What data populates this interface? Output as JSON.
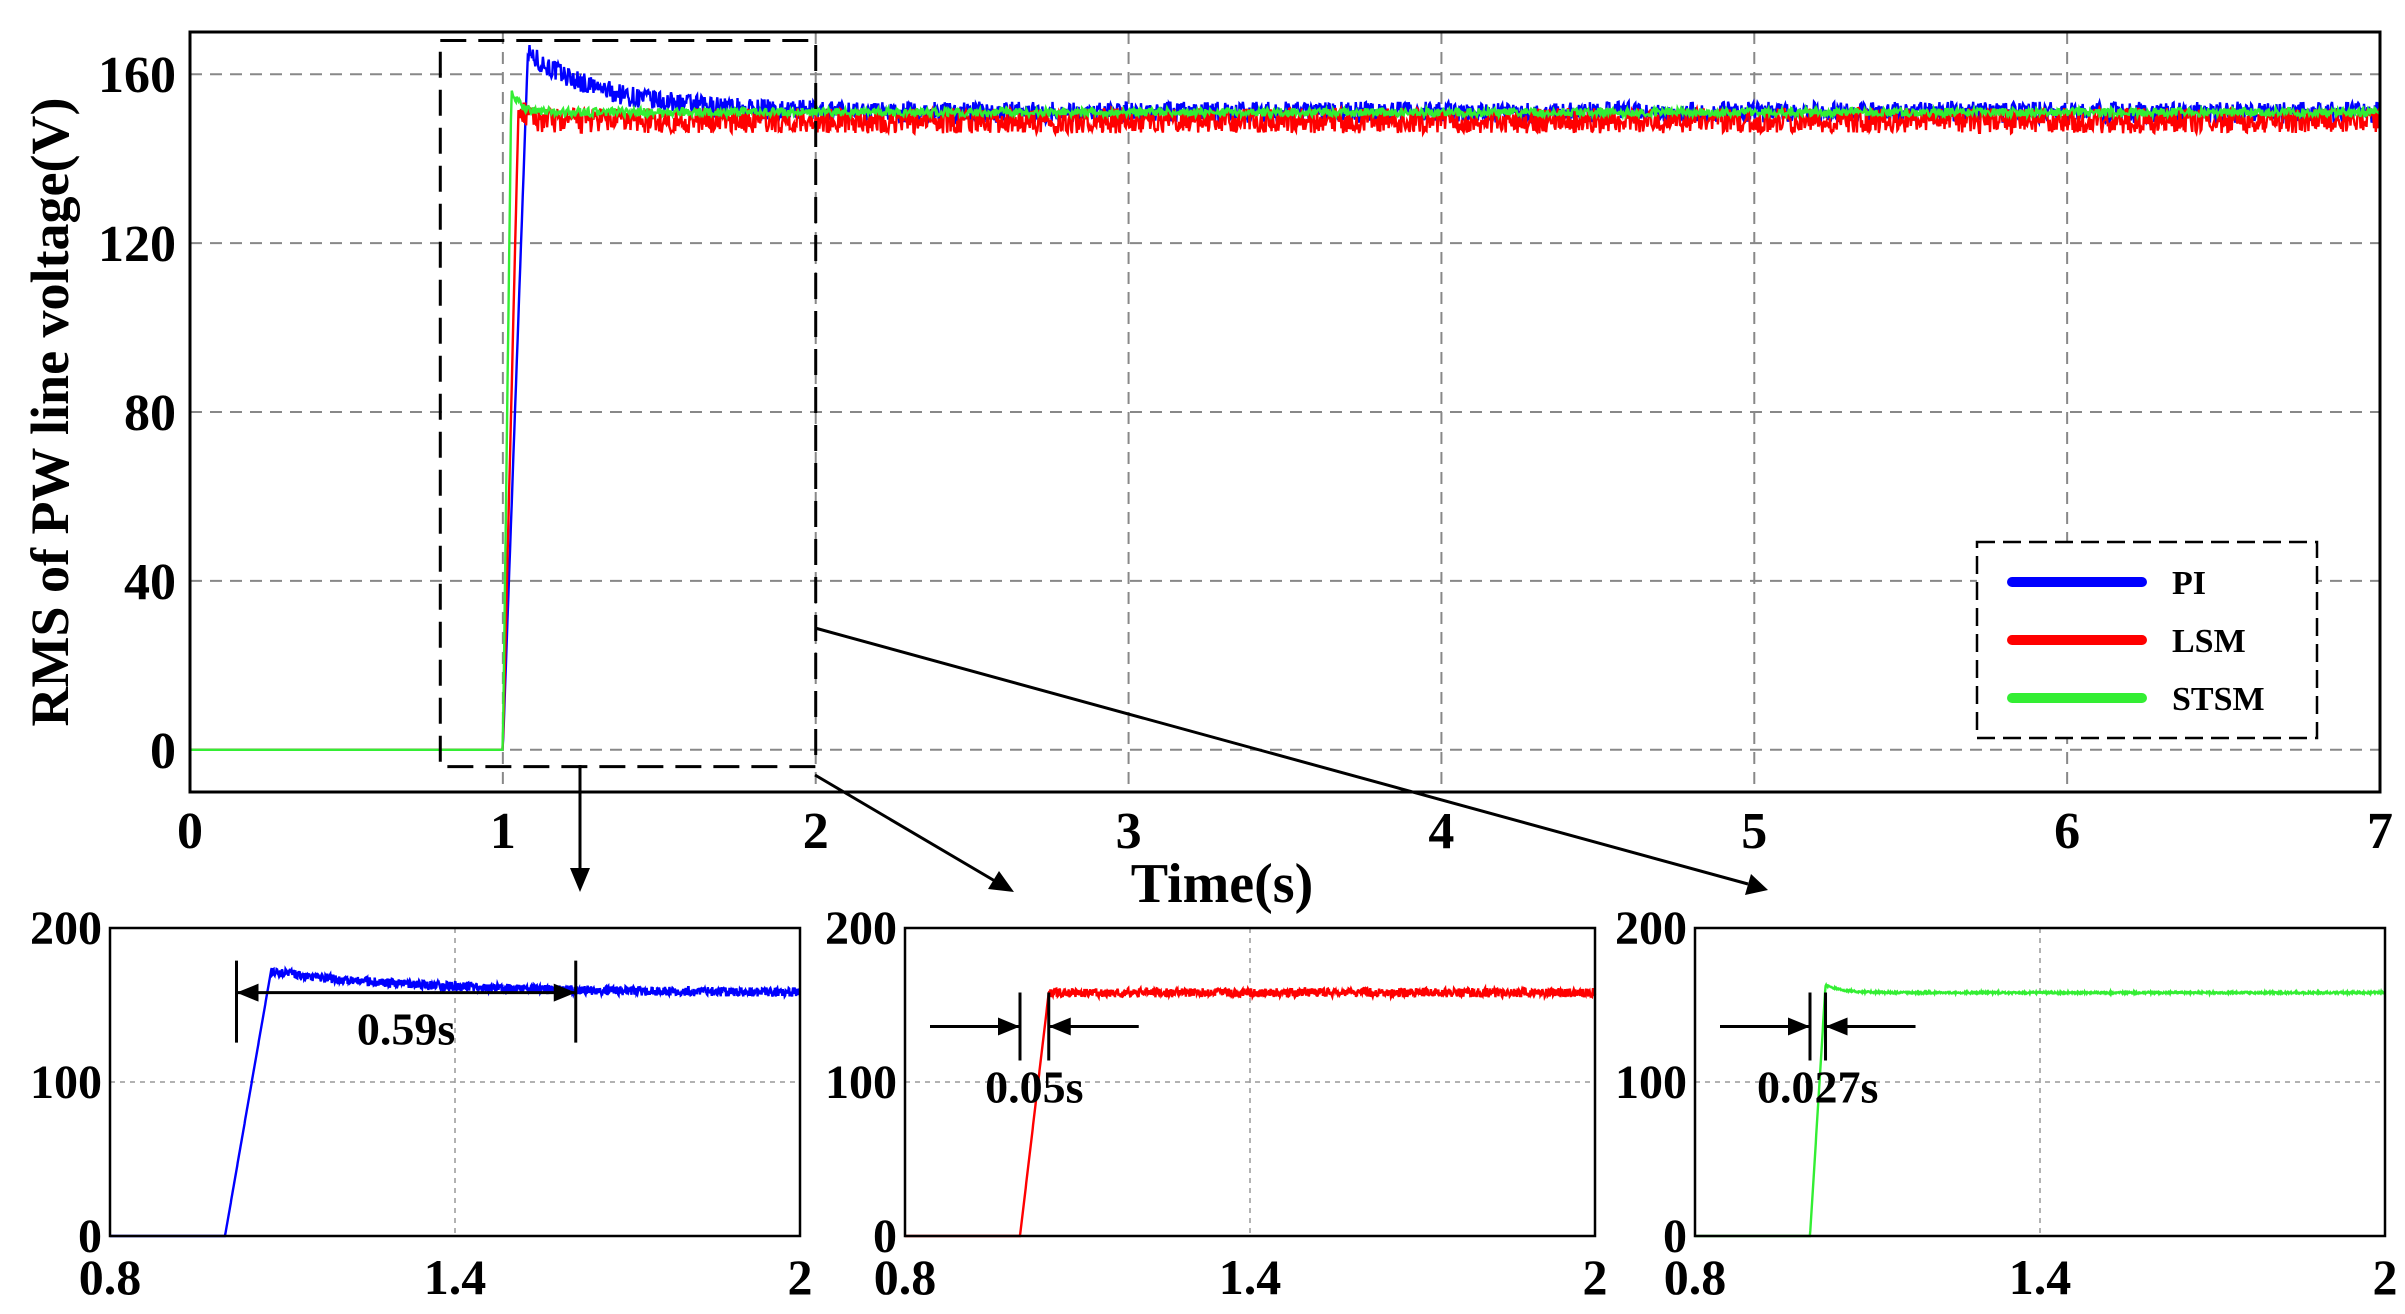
{
  "chart_data": [
    {
      "id": "main",
      "type": "line",
      "xlabel": "Time(s)",
      "ylabel": "RMS of PW line voltage(V)",
      "xlim": [
        0,
        7
      ],
      "ylim": [
        -10,
        170
      ],
      "x_ticks": [
        0,
        1,
        2,
        3,
        4,
        5,
        6,
        7
      ],
      "y_ticks": [
        0,
        40,
        80,
        120,
        160
      ],
      "grid": true,
      "legend_position": "right",
      "series": [
        {
          "name": "PI",
          "color": "#0000ff",
          "step_time": 1.0,
          "rise_time": 0.08,
          "peak": 165,
          "steady": 151,
          "ripple": 2.5
        },
        {
          "name": "LSM",
          "color": "#ff0000",
          "step_time": 1.0,
          "rise_time": 0.05,
          "peak": 152,
          "steady": 149,
          "ripple": 3.0
        },
        {
          "name": "STSM",
          "color": "#33ee33",
          "step_time": 1.0,
          "rise_time": 0.027,
          "peak": 156,
          "steady": 151,
          "ripple": 1.0
        }
      ],
      "zoom_region": {
        "x": [
          0.8,
          2.0
        ],
        "y": [
          -4,
          168
        ]
      }
    },
    {
      "id": "zoom-pi",
      "type": "line",
      "series_name": "PI",
      "color": "#0000ff",
      "xlim": [
        0.8,
        2.0
      ],
      "ylim": [
        0,
        200
      ],
      "x_ticks": [
        "0.8",
        "1.4",
        "2"
      ],
      "y_ticks": [
        "0",
        "100",
        "200"
      ],
      "step_time": 1.0,
      "rise_time": 0.08,
      "peak": 172,
      "steady": 158,
      "ripple": 3.0,
      "annotation": {
        "text": "0.59s",
        "x_start": 1.02,
        "x_end": 1.61,
        "y": 158
      }
    },
    {
      "id": "zoom-lsm",
      "type": "line",
      "series_name": "LSM",
      "color": "#ff0000",
      "xlim": [
        0.8,
        2.0
      ],
      "ylim": [
        0,
        200
      ],
      "x_ticks": [
        "0.8",
        "1.4",
        "2"
      ],
      "y_ticks": [
        "0",
        "100",
        "200"
      ],
      "step_time": 1.0,
      "rise_time": 0.05,
      "peak": 158,
      "steady": 158,
      "ripple": 3.0,
      "annotation": {
        "text": "0.05s",
        "x_start": 1.0,
        "x_end": 1.05,
        "y": 136
      }
    },
    {
      "id": "zoom-stsm",
      "type": "line",
      "series_name": "STSM",
      "color": "#33ee33",
      "xlim": [
        0.8,
        2.0
      ],
      "ylim": [
        0,
        200
      ],
      "x_ticks": [
        "0.8",
        "1.4",
        "2"
      ],
      "y_ticks": [
        "0",
        "100",
        "200"
      ],
      "step_time": 1.0,
      "rise_time": 0.027,
      "peak": 163,
      "steady": 158,
      "ripple": 0.6,
      "annotation": {
        "text": "0.027s",
        "x_start": 1.0,
        "x_end": 1.027,
        "y": 136
      }
    }
  ]
}
